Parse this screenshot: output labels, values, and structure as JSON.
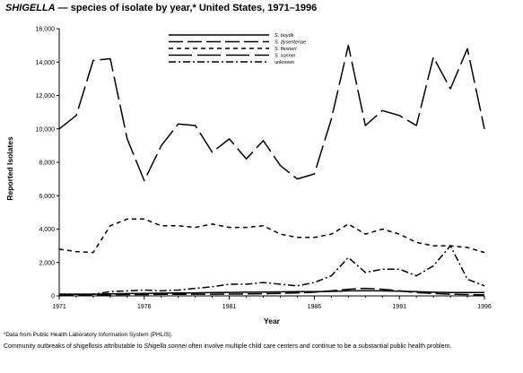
{
  "title": {
    "organism": "SHIGELLA",
    "rest": " — species of isolate by year,* United States, 1971–1996"
  },
  "footnote": {
    "marker": "*",
    "text": "Data from Public Health Laboratory Information System (PHLIS)."
  },
  "caption": {
    "before": "Community outbreaks of shigellosis attributable to ",
    "species": "Shigella sonnei",
    "after": " often involve multiple child care centers and continue to be a substantial public health problem."
  },
  "chart_data": {
    "type": "line",
    "xlabel": "Year",
    "ylabel": "Reported Isolates",
    "xlim": [
      1971,
      1996
    ],
    "ylim": [
      0,
      16000
    ],
    "x_ticks": [
      1971,
      1976,
      1981,
      1986,
      1991,
      1996
    ],
    "y_ticks": [
      0,
      2000,
      4000,
      6000,
      8000,
      10000,
      12000,
      14000,
      16000
    ],
    "grid": false,
    "legend_position": "top-center",
    "x": [
      1971,
      1972,
      1973,
      1974,
      1975,
      1976,
      1977,
      1978,
      1979,
      1980,
      1981,
      1982,
      1983,
      1984,
      1985,
      1986,
      1987,
      1988,
      1989,
      1990,
      1991,
      1992,
      1993,
      1994,
      1995,
      1996
    ],
    "series": [
      {
        "name": "S. boydii",
        "style": "solid",
        "stroke": "#000000",
        "values": [
          100,
          100,
          100,
          120,
          140,
          150,
          160,
          170,
          180,
          200,
          210,
          220,
          230,
          240,
          250,
          250,
          270,
          300,
          310,
          300,
          280,
          250,
          220,
          200,
          200,
          200
        ]
      },
      {
        "name": "S. dysenteriae",
        "style": "long-dash",
        "stroke": "#000000",
        "values": [
          50,
          50,
          60,
          70,
          80,
          80,
          90,
          90,
          100,
          100,
          110,
          120,
          130,
          150,
          180,
          220,
          300,
          400,
          450,
          400,
          300,
          200,
          150,
          100,
          80,
          60
        ]
      },
      {
        "name": "S. flexneri",
        "style": "short-dash",
        "stroke": "#000000",
        "values": [
          2800,
          2650,
          2600,
          4200,
          4600,
          4600,
          4200,
          4200,
          4100,
          4300,
          4100,
          4100,
          4200,
          3700,
          3500,
          3500,
          3700,
          4300,
          3700,
          4000,
          3700,
          3200,
          3000,
          3000,
          2900,
          2600
        ]
      },
      {
        "name": "S. sonnei",
        "style": "very-long-dash",
        "stroke": "#000000",
        "values": [
          10000,
          10800,
          14100,
          14200,
          9400,
          6900,
          9000,
          10300,
          10200,
          8600,
          9400,
          8200,
          9300,
          7800,
          7000,
          7300,
          10600,
          15000,
          10200,
          11100,
          10800,
          10200,
          14300,
          12400,
          14800,
          10000
        ]
      },
      {
        "name": "unknown",
        "style": "dash-dot",
        "stroke": "#000000",
        "values": [
          100,
          100,
          100,
          250,
          300,
          350,
          300,
          350,
          450,
          550,
          700,
          700,
          800,
          700,
          600,
          800,
          1200,
          2300,
          1400,
          1600,
          1600,
          1200,
          1800,
          3000,
          1000,
          600
        ]
      }
    ]
  }
}
